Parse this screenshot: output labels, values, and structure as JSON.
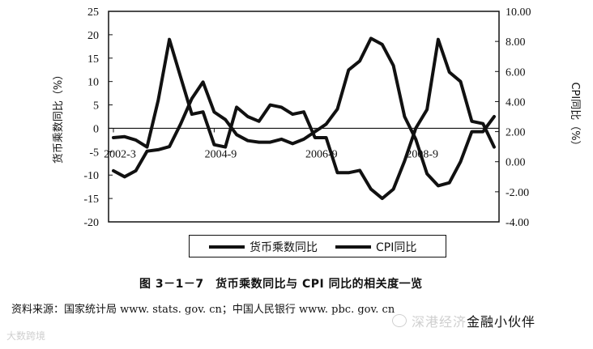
{
  "chart_data": {
    "type": "line",
    "left_axis": {
      "label": "货币乘数同比（%）",
      "min": -20,
      "max": 25,
      "ticks": [
        "25",
        "20",
        "15",
        "10",
        "5",
        "0",
        "-5",
        "-10",
        "-15",
        "-20"
      ]
    },
    "right_axis": {
      "label": "CPI同比（%）",
      "min": -4,
      "max": 10,
      "ticks": [
        "10.00",
        "8.00",
        "6.00",
        "4.00",
        "2.00",
        "0.00",
        "-2.00",
        "-4.00"
      ]
    },
    "x_tick_labels": [
      "2002-3",
      "2004-9",
      "2006-9",
      "2008-9"
    ],
    "x_tick_positions": [
      0,
      9,
      18,
      27
    ],
    "x_count": 35,
    "series": [
      {
        "name": "货币乘数同比",
        "axis": "left",
        "values": [
          -2,
          -1.8,
          -2.5,
          -4,
          6,
          19,
          11,
          3,
          3.5,
          -3.5,
          -4,
          4.5,
          2.5,
          1.5,
          5,
          4.5,
          3,
          3.5,
          -2,
          -2,
          -9.5,
          -9.5,
          -9,
          -13,
          -15,
          -13,
          -7,
          0,
          4,
          19,
          12,
          10,
          1.5,
          1,
          -4
        ]
      },
      {
        "name": "CPI同比",
        "axis": "right",
        "values": [
          -0.6,
          -1.0,
          -0.6,
          0.7,
          0.8,
          1.0,
          2.5,
          4.2,
          5.3,
          3.3,
          2.8,
          1.8,
          1.4,
          1.3,
          1.3,
          1.5,
          1.2,
          1.5,
          2.0,
          2.5,
          3.5,
          6.1,
          6.7,
          8.2,
          7.8,
          6.4,
          3.0,
          1.5,
          -0.8,
          -1.6,
          -1.4,
          0.0,
          2.0,
          2.0,
          3.0
        ]
      }
    ],
    "legend_placement": "bottom"
  },
  "legend": {
    "item1": "货币乘数同比",
    "item2": "CPI同比"
  },
  "caption": "图 3－1－7　货币乘数同比与 CPI 同比的相关度一览",
  "source": "资料来源：国家统计局 www. stats. gov. cn；中国人民银行 www. pbc. gov. cn",
  "watermark_left": "大数跨境",
  "watermark_right_a": "深港经济",
  "watermark_right_b": "金融小伙伴"
}
